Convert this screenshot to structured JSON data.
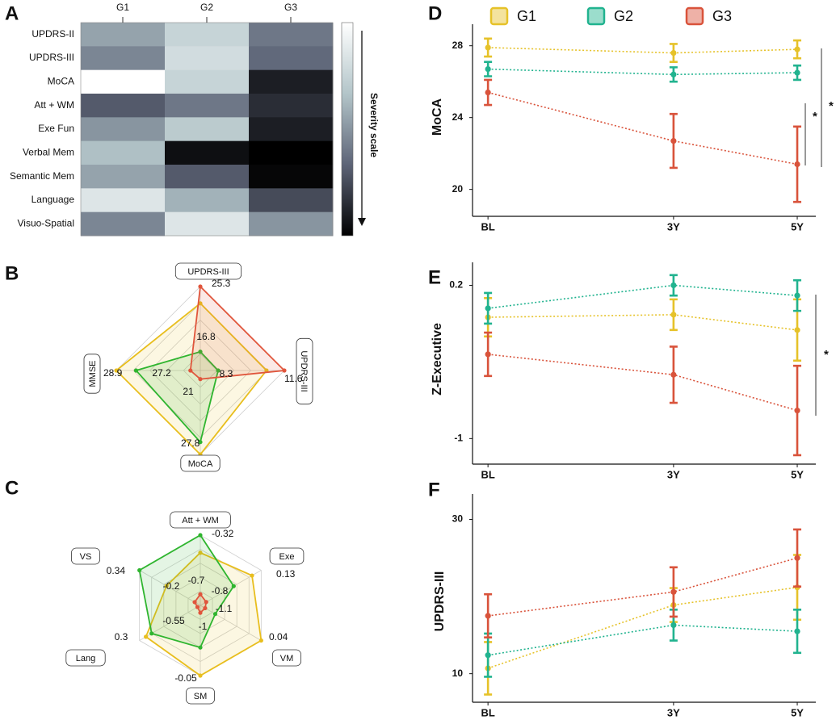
{
  "chart_data": [
    {
      "type": "heatmap",
      "panel": "A",
      "columns": [
        "G1",
        "G2",
        "G3"
      ],
      "rows": [
        "UPDRS-II",
        "UPDRS-III",
        "MoCA",
        "Att + WM",
        "Exe Fun",
        "Verbal Mem",
        "Semantic Mem",
        "Language",
        "Visuo-Spatial"
      ],
      "values": [
        [
          0.45,
          0.25,
          0.6
        ],
        [
          0.55,
          0.2,
          0.65
        ],
        [
          0.0,
          0.25,
          0.9
        ],
        [
          0.7,
          0.6,
          0.85
        ],
        [
          0.5,
          0.3,
          0.9
        ],
        [
          0.35,
          0.95,
          1.0
        ],
        [
          0.45,
          0.7,
          0.98
        ],
        [
          0.15,
          0.4,
          0.75
        ],
        [
          0.55,
          0.15,
          0.5
        ]
      ],
      "zlim": [
        0,
        1
      ],
      "colors": [
        "#ffffff",
        "#b3c5c9",
        "#5d6477",
        "#000000"
      ],
      "colorbar_label": "Severity scale"
    },
    {
      "type": "radar",
      "panel": "B",
      "axes": [
        {
          "label": "UPDRS-III",
          "min": 16.8,
          "max": 25.3
        },
        {
          "label": "UPDRS-III",
          "min": 8.3,
          "max": 11.6
        },
        {
          "label": "MoCA",
          "min": 21,
          "max": 27.8
        },
        {
          "label": "MMSE",
          "min": 27.2,
          "max": 28.9
        }
      ],
      "series": [
        {
          "color": "#e8be1e",
          "values": [
            23.6,
            10.9,
            27.8,
            28.9
          ]
        },
        {
          "color": "#2fb52f",
          "values": [
            18.7,
            9.0,
            26.8,
            28.5
          ]
        },
        {
          "color": "#e0553c",
          "values": [
            25.3,
            11.6,
            21.7,
            27.4
          ]
        }
      ]
    },
    {
      "type": "radar",
      "panel": "C",
      "axes": [
        {
          "label": "Att + WM",
          "min": -0.7,
          "max": -0.32
        },
        {
          "label": "Exe",
          "min": -0.8,
          "max": 0.13
        },
        {
          "label": "VM",
          "min": -1.1,
          "max": 0.04
        },
        {
          "label": "SM",
          "min": -1,
          "max": -0.05
        },
        {
          "label": "Lang",
          "min": -0.55,
          "max": 0.3
        },
        {
          "label": "VS",
          "min": -0.2,
          "max": 0.34
        }
      ],
      "series": [
        {
          "color": "#e8be1e",
          "values": [
            -0.415,
            -0.01,
            0.04,
            -0.05,
            0.21,
            0.1
          ]
        },
        {
          "color": "#2fb52f",
          "values": [
            -0.32,
            -0.29,
            -0.82,
            -0.43,
            0.13,
            0.34
          ]
        },
        {
          "color": "#e0553c",
          "values": [
            -0.64,
            -0.71,
            -1.01,
            -0.9,
            -0.51,
            -0.15
          ]
        }
      ]
    },
    {
      "type": "line",
      "panel": "D",
      "y_label": "MoCA",
      "x": [
        0,
        3,
        5
      ],
      "xlim": [
        -0.25,
        5.3
      ],
      "xticks": [
        {
          "value": 0,
          "label": "BL"
        },
        {
          "value": 3,
          "label": "3Y"
        },
        {
          "value": 5,
          "label": "5Y"
        }
      ],
      "ylim": [
        18.5,
        29.2
      ],
      "yticks": [
        20,
        24,
        28
      ],
      "series": [
        {
          "name": "G1",
          "color": "#e6c229",
          "values": [
            27.9,
            27.6,
            27.8
          ],
          "errors": [
            0.5,
            0.5,
            0.5
          ]
        },
        {
          "name": "G2",
          "color": "#21b38f",
          "values": [
            26.7,
            26.4,
            26.5
          ],
          "errors": [
            0.4,
            0.4,
            0.4
          ]
        },
        {
          "name": "G3",
          "color": "#d9533b",
          "values": [
            25.4,
            22.7,
            21.4
          ],
          "errors": [
            0.7,
            1.5,
            2.1
          ]
        }
      ],
      "annotations": [
        "*",
        "*"
      ]
    },
    {
      "type": "line",
      "panel": "E",
      "y_label": "Z-Executive",
      "x": [
        0,
        3,
        5
      ],
      "xlim": [
        -0.25,
        5.3
      ],
      "xticks": [
        {
          "value": 0,
          "label": "BL"
        },
        {
          "value": 3,
          "label": "3Y"
        },
        {
          "value": 5,
          "label": "5Y"
        }
      ],
      "ylim": [
        -1.2,
        0.38
      ],
      "yticks": [
        0.2,
        -1
      ],
      "series": [
        {
          "color": "#e6c229",
          "values": [
            -0.05,
            -0.03,
            -0.15
          ],
          "errors": [
            0.15,
            0.12,
            0.24
          ]
        },
        {
          "color": "#21b38f",
          "values": [
            0.02,
            0.2,
            0.12
          ],
          "errors": [
            0.12,
            0.08,
            0.12
          ]
        },
        {
          "color": "#d9533b",
          "values": [
            -0.34,
            -0.5,
            -0.78
          ],
          "errors": [
            0.17,
            0.22,
            0.35
          ]
        }
      ],
      "annotations": [
        "*"
      ]
    },
    {
      "type": "line",
      "panel": "F",
      "y_label": "UPDRS-III",
      "x": [
        0,
        3,
        5
      ],
      "xlim": [
        -0.25,
        5.3
      ],
      "xticks": [
        {
          "value": 0,
          "label": "BL"
        },
        {
          "value": 3,
          "label": "3Y"
        },
        {
          "value": 5,
          "label": "5Y"
        }
      ],
      "ylim": [
        6.3,
        33.3
      ],
      "yticks": [
        10,
        30
      ],
      "series": [
        {
          "color": "#e6c229",
          "values": [
            10.7,
            18.9,
            21.2
          ],
          "errors": [
            3.4,
            2.2,
            4.2
          ]
        },
        {
          "color": "#21b38f",
          "values": [
            12.4,
            16.3,
            15.5
          ],
          "errors": [
            2.8,
            2.0,
            2.8
          ]
        },
        {
          "color": "#d9533b",
          "values": [
            17.5,
            20.6,
            25.0
          ],
          "errors": [
            2.8,
            3.2,
            3.7
          ]
        }
      ],
      "annotations": []
    }
  ]
}
